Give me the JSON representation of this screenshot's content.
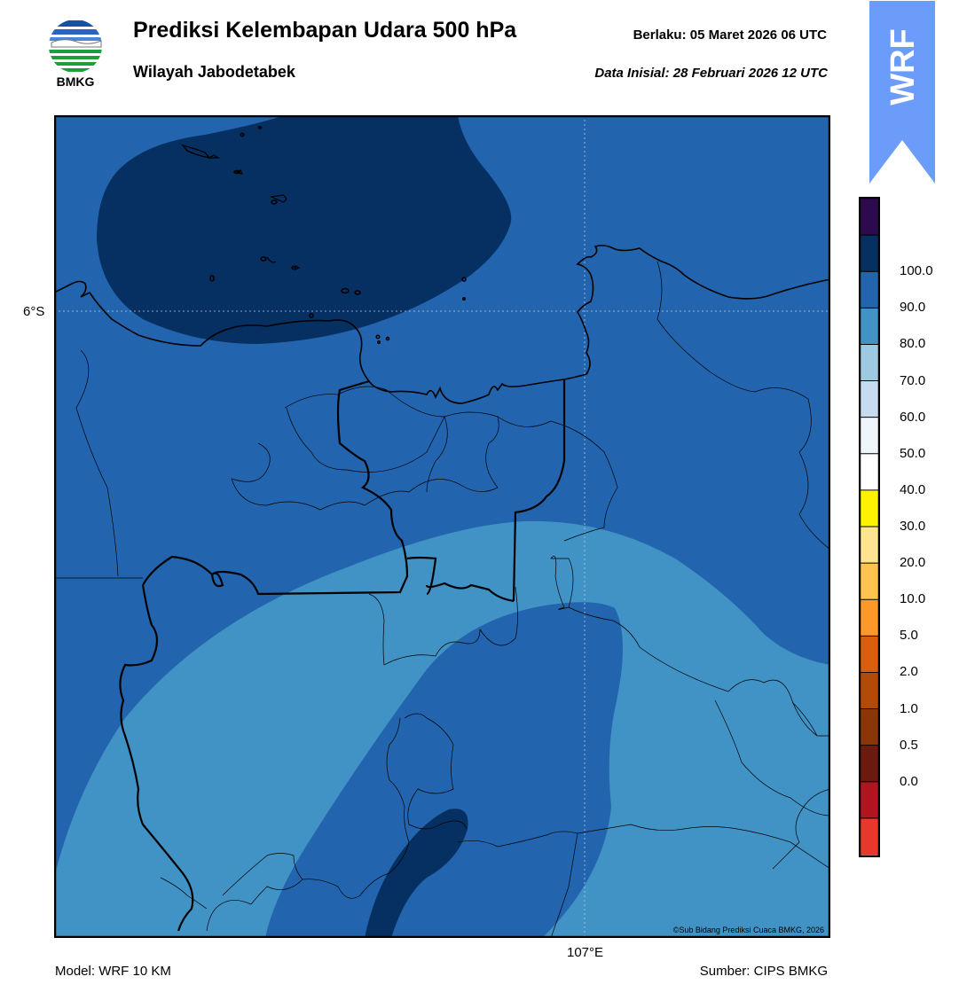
{
  "header": {
    "title": "Prediksi Kelembapan Udara 500 hPa",
    "subtitle": "Wilayah Jabodetabek",
    "valid": "Berlaku:  05 Maret 2026 06 UTC",
    "initial": "Data Inisial:  28 Februari 2026 12 UTC"
  },
  "logo": {
    "text": "BMKG",
    "icon": "bmkg-logo"
  },
  "badge": {
    "text": "WRF",
    "color": "#6b9cf9"
  },
  "map": {
    "lat_label": "6°S",
    "lon_label": "107°E",
    "copyright": "©Sub Bidang Prediksi Cuaca BMKG, 2026",
    "fill_colors": {
      "band_90_100": "#062f62",
      "band_80_90": "#2265ae",
      "band_70_80": "#4192c5"
    }
  },
  "colorbar": {
    "labels": [
      "100.0",
      "90.0",
      "80.0",
      "70.0",
      "60.0",
      "50.0",
      "40.0",
      "30.0",
      "20.0",
      "10.0",
      "5.0",
      "2.0",
      "1.0",
      "0.5",
      "0.0"
    ],
    "colors": [
      "#e8372b",
      "#b0141e",
      "#6b1a10",
      "#8a3608",
      "#b34a08",
      "#d95f0e",
      "#fe9929",
      "#fec44f",
      "#fee391",
      "#fff200",
      "#ffffff",
      "#eef5fb",
      "#c6dbef",
      "#9ecae1",
      "#4192c5",
      "#2265ae",
      "#062f62",
      "#2d0a4e"
    ]
  },
  "footer": {
    "model": "Model: WRF 10 KM",
    "source": "Sumber: CIPS BMKG"
  }
}
